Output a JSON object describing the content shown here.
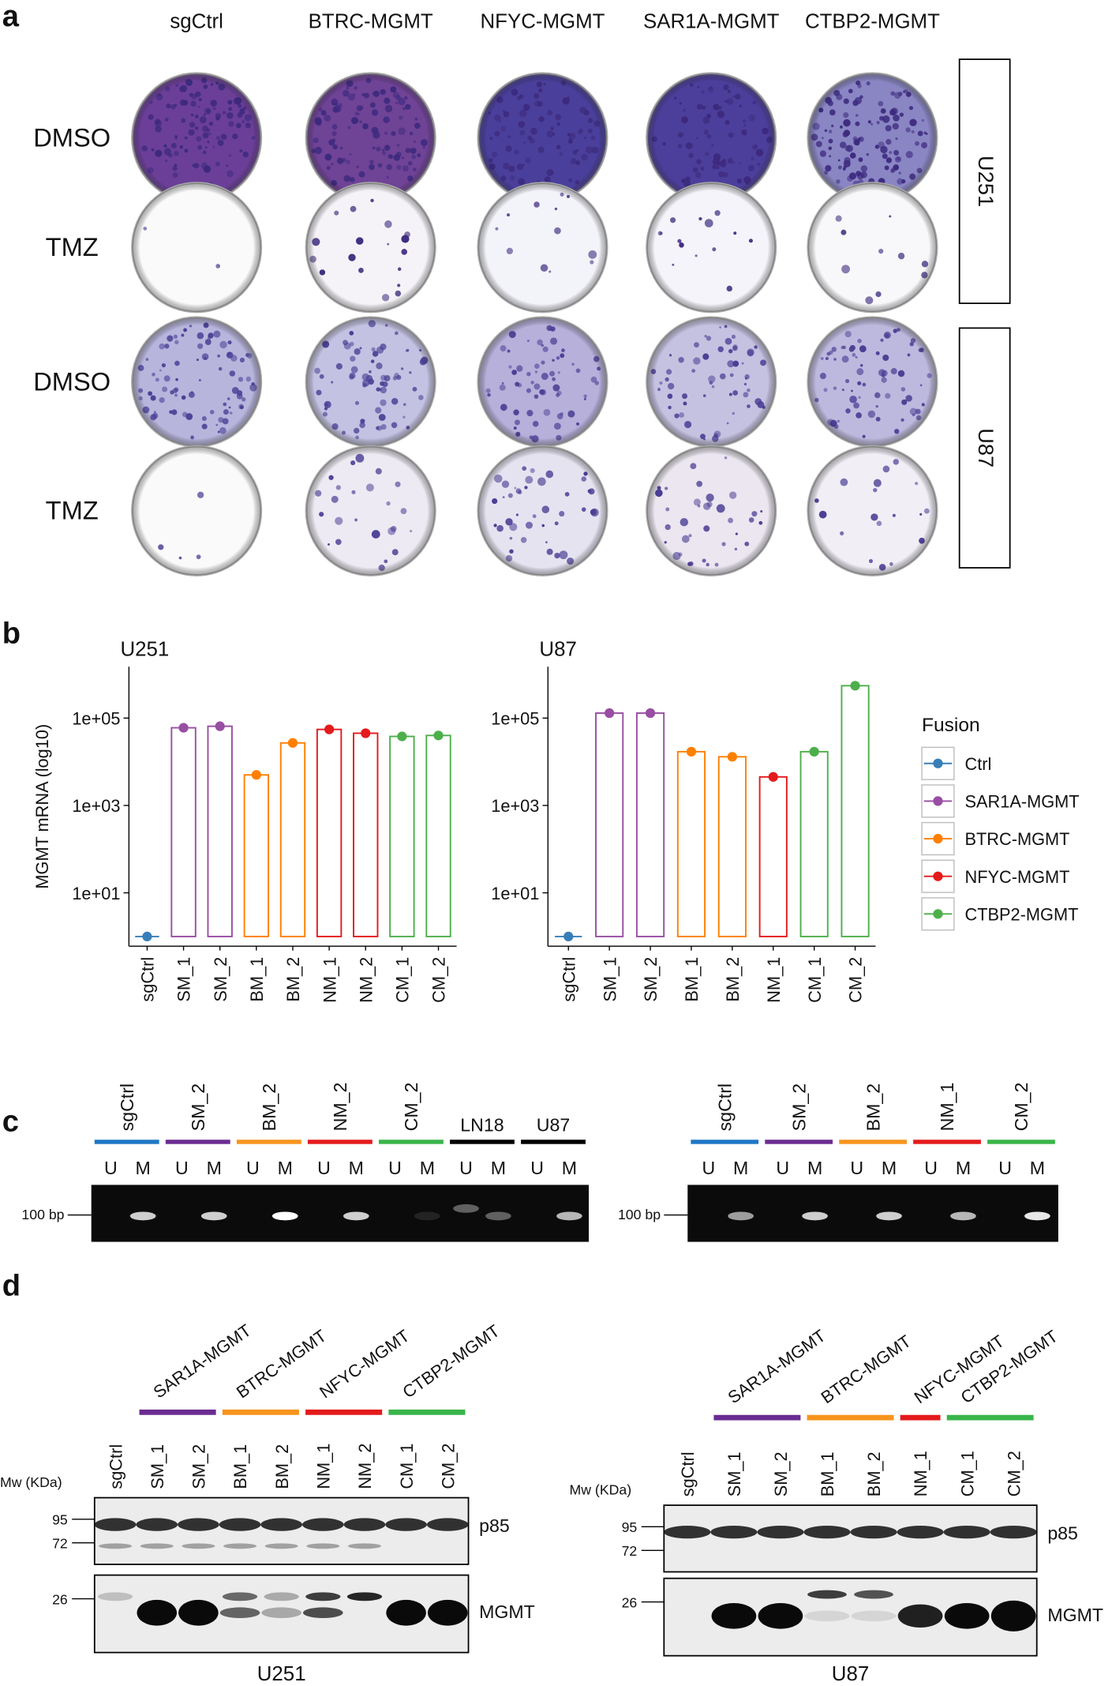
{
  "panel_labels": [
    "a",
    "b",
    "c",
    "d"
  ],
  "panel_a": {
    "columns": [
      "sgCtrl",
      "BTRC-MGMT",
      "NFYC-MGMT",
      "SAR1A-MGMT",
      "CTBP2-MGMT"
    ],
    "rows": [
      "DMSO",
      "TMZ",
      "DMSO",
      "TMZ"
    ],
    "cell_lines": [
      "U251",
      "U87"
    ]
  },
  "chart_data": [
    {
      "type": "bar",
      "title": "U251",
      "y_label": "MGMT mRNA (log10)",
      "log_scale": true,
      "categories": [
        "sgCtrl",
        "SM_1",
        "SM_2",
        "BM_1",
        "BM_2",
        "NM_1",
        "NM_2",
        "CM_1",
        "CM_2"
      ],
      "values": [
        1,
        60000,
        65000,
        5000,
        27000,
        55000,
        45000,
        38000,
        40000
      ],
      "colors": [
        "#377eb8",
        "#984ea3",
        "#984ea3",
        "#ff7f00",
        "#ff7f00",
        "#e41a1c",
        "#e41a1c",
        "#4daf4a",
        "#4daf4a"
      ],
      "ylim": [
        0.6,
        1500000
      ],
      "yticks": [
        {
          "value": 10,
          "label": "1e+01"
        },
        {
          "value": 1000,
          "label": "1e+03"
        },
        {
          "value": 100000,
          "label": "1e+05"
        }
      ]
    },
    {
      "type": "bar",
      "title": "U87",
      "log_scale": true,
      "categories": [
        "sgCtrl",
        "SM_1",
        "SM_2",
        "BM_1",
        "BM_2",
        "NM_1",
        "CM_1",
        "CM_2"
      ],
      "values": [
        1,
        130000,
        130000,
        17000,
        13000,
        4500,
        17000,
        550000
      ],
      "colors": [
        "#377eb8",
        "#984ea3",
        "#984ea3",
        "#ff7f00",
        "#ff7f00",
        "#e41a1c",
        "#4daf4a",
        "#4daf4a"
      ],
      "ylim": [
        0.6,
        1500000
      ],
      "yticks": [
        {
          "value": 10,
          "label": "1e+01"
        },
        {
          "value": 1000,
          "label": "1e+03"
        },
        {
          "value": 100000,
          "label": "1e+05"
        }
      ],
      "legend": {
        "title": "Fusion",
        "names": [
          "Ctrl",
          "SAR1A-MGMT",
          "BTRC-MGMT",
          "NFYC-MGMT",
          "CTBP2-MGMT"
        ],
        "colors": [
          "#377eb8",
          "#984ea3",
          "#ff7f00",
          "#e41a1c",
          "#4daf4a"
        ]
      }
    }
  ],
  "panel_c": {
    "marker": "100 bp",
    "lanes": [
      "U",
      "M"
    ],
    "gels": [
      {
        "samples": [
          "sgCtrl",
          "SM_2",
          "BM_2",
          "NM_2",
          "CM_2",
          "LN18",
          "U87"
        ],
        "colors": [
          "#1f77c4",
          "#6a2c91",
          "#f7941d",
          "#e41a1c",
          "#39b54a",
          "#000000",
          "#000000"
        ]
      },
      {
        "samples": [
          "sgCtrl",
          "SM_2",
          "BM_2",
          "NM_1",
          "CM_2"
        ],
        "colors": [
          "#1f77c4",
          "#6a2c91",
          "#f7941d",
          "#e41a1c",
          "#39b54a"
        ]
      }
    ]
  },
  "panel_d": {
    "mw_label": "Mw (KDa)",
    "proteins": [
      "p85",
      "MGMT"
    ],
    "markers": [
      "95",
      "72",
      "26"
    ],
    "blots": [
      {
        "cell_line": "U251",
        "groups": [
          "SAR1A-MGMT",
          "BTRC-MGMT",
          "NFYC-MGMT",
          "CTBP2-MGMT"
        ],
        "group_colors": [
          "#6a2c91",
          "#f7941d",
          "#e41a1c",
          "#39b54a"
        ],
        "lanes": [
          "sgCtrl",
          "SM_1",
          "SM_2",
          "BM_1",
          "BM_2",
          "NM_1",
          "NM_2",
          "CM_1",
          "CM_2"
        ]
      },
      {
        "cell_line": "U87",
        "groups": [
          "SAR1A-MGMT",
          "BTRC-MGMT",
          "NFYC-MGMT",
          "CTBP2-MGMT"
        ],
        "group_colors": [
          "#6a2c91",
          "#f7941d",
          "#e41a1c",
          "#39b54a"
        ],
        "lanes": [
          "sgCtrl",
          "SM_1",
          "SM_2",
          "BM_1",
          "BM_2",
          "NM_1",
          "CM_1",
          "CM_2"
        ]
      }
    ]
  }
}
